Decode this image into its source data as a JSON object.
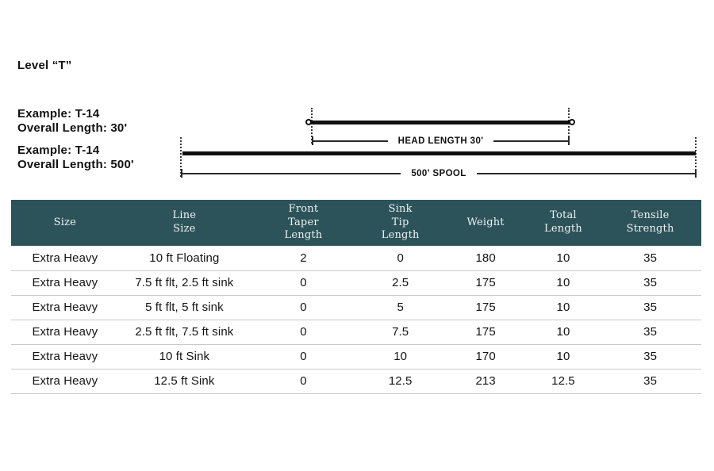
{
  "header": {
    "title": "Level “T”"
  },
  "examples": [
    {
      "name": "Example: T-14",
      "length": "Overall Length: 30'"
    },
    {
      "name": "Example: T-14",
      "length": "Overall Length: 500'"
    }
  ],
  "diagram": {
    "head_label": "HEAD LENGTH 30'",
    "spool_label": "500' SPOOL"
  },
  "table": {
    "headers": [
      "Size",
      "Line\nSize",
      "Front\nTaper\nLength",
      "Sink\nTip\nLength",
      "Weight",
      "Total\nLength",
      "Tensile\nStrength"
    ],
    "rows": [
      [
        "Extra Heavy",
        "10 ft Floating",
        "2",
        "0",
        "180",
        "10",
        "35"
      ],
      [
        "Extra Heavy",
        "7.5 ft flt, 2.5 ft sink",
        "0",
        "2.5",
        "175",
        "10",
        "35"
      ],
      [
        "Extra Heavy",
        "5 ft flt, 5 ft sink",
        "0",
        "5",
        "175",
        "10",
        "35"
      ],
      [
        "Extra Heavy",
        "2.5 ft flt, 7.5 ft sink",
        "0",
        "7.5",
        "175",
        "10",
        "35"
      ],
      [
        "Extra Heavy",
        "10 ft Sink",
        "0",
        "10",
        "170",
        "10",
        "35"
      ],
      [
        "Extra Heavy",
        "12.5 ft Sink",
        "0",
        "12.5",
        "213",
        "12.5",
        "35"
      ]
    ]
  },
  "colors": {
    "table_header_bg": "#2d535a",
    "table_header_text": "#eef1f0",
    "row_border": "#c7cbcc",
    "line_color": "#101010"
  }
}
